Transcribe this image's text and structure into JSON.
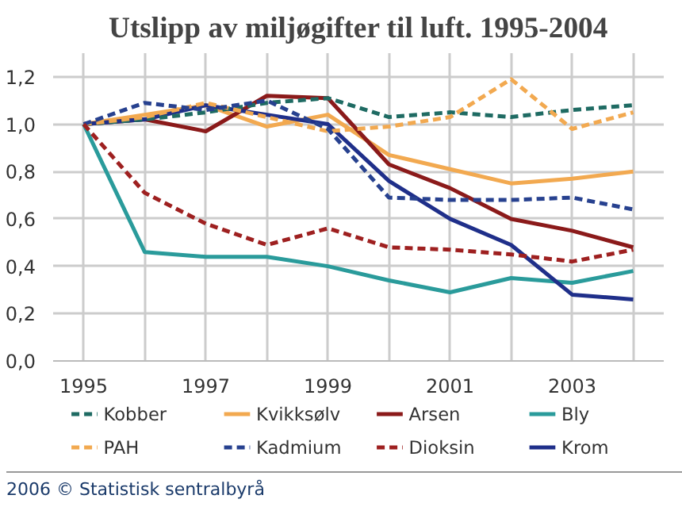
{
  "chart_data": {
    "type": "line",
    "title": "Utslipp av miljøgifter til luft. 1995-2004",
    "x": [
      1995,
      1996,
      1997,
      1998,
      1999,
      2000,
      2001,
      2002,
      2003,
      2004
    ],
    "series": [
      {
        "name": "Kobber",
        "color": "#1f6b63",
        "line_style": "dashed",
        "values": [
          1.0,
          1.02,
          1.05,
          1.09,
          1.11,
          1.03,
          1.05,
          1.03,
          1.06,
          1.08
        ]
      },
      {
        "name": "PAH",
        "color": "#f2a950",
        "line_style": "dashed",
        "values": [
          1.0,
          1.03,
          1.09,
          1.03,
          0.97,
          0.99,
          1.03,
          1.19,
          0.98,
          1.05
        ]
      },
      {
        "name": "Kvikksølv",
        "color": "#f2a950",
        "line_style": "solid",
        "values": [
          1.0,
          1.04,
          1.08,
          0.99,
          1.04,
          0.87,
          0.81,
          0.75,
          0.77,
          0.8
        ]
      },
      {
        "name": "Kadmium",
        "color": "#27418f",
        "line_style": "dashed",
        "values": [
          1.0,
          1.09,
          1.06,
          1.1,
          0.98,
          0.69,
          0.68,
          0.68,
          0.69,
          0.64
        ]
      },
      {
        "name": "Arsen",
        "color": "#8b1a1a",
        "line_style": "solid",
        "values": [
          1.0,
          1.02,
          0.97,
          1.12,
          1.11,
          0.83,
          0.73,
          0.6,
          0.55,
          0.48
        ]
      },
      {
        "name": "Dioksin",
        "color": "#9e2020",
        "line_style": "dashed",
        "values": [
          1.0,
          0.71,
          0.58,
          0.49,
          0.56,
          0.48,
          0.47,
          0.45,
          0.42,
          0.47
        ]
      },
      {
        "name": "Bly",
        "color": "#2a9b9b",
        "line_style": "solid",
        "values": [
          1.0,
          0.46,
          0.44,
          0.44,
          0.4,
          0.34,
          0.29,
          0.35,
          0.33,
          0.38
        ]
      },
      {
        "name": "Krom",
        "color": "#1f2f8a",
        "line_style": "solid",
        "values": [
          1.0,
          1.02,
          1.08,
          1.04,
          1.0,
          0.76,
          0.6,
          0.49,
          0.28,
          0.26
        ]
      }
    ],
    "xlim": [
      1994.5,
      2004.5
    ],
    "xticks": [
      1995,
      {
        "value": 1996,
        "label": null
      },
      1997,
      {
        "value": 1998,
        "label": null
      },
      1999,
      {
        "value": 2000,
        "label": null
      },
      2001,
      {
        "value": 2002,
        "label": null
      },
      2003,
      {
        "value": 2004,
        "label": null
      }
    ],
    "ylim": [
      0,
      1.3
    ],
    "yticks": [
      {
        "value": 0,
        "label": "0,0"
      },
      {
        "value": 0.2,
        "label": "0,2"
      },
      {
        "value": 0.4,
        "label": "0,4"
      },
      {
        "value": 0.6,
        "label": "0,6"
      },
      {
        "value": 0.8,
        "label": "0,8"
      },
      {
        "value": 1.0,
        "label": "1,0"
      },
      {
        "value": 1.2,
        "label": "1,2"
      }
    ],
    "grid": true,
    "legend": "bottom",
    "marker": "none",
    "annotations": [
      "2006 © Statistisk sentralbyrå"
    ]
  }
}
